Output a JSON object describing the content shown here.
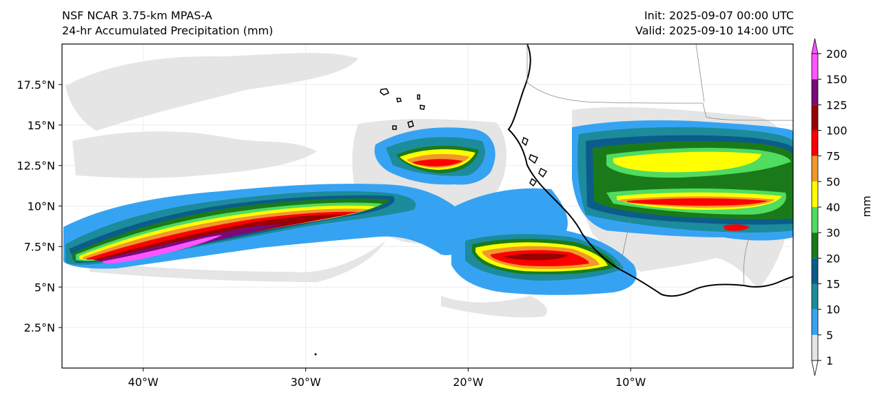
{
  "header": {
    "model": "NSF NCAR 3.75-km MPAS-A",
    "field": "24-hr Accumulated Precipitation (mm)",
    "init": "Init: 2025-09-07 00:00 UTC",
    "valid": "Valid: 2025-09-10 14:00 UTC"
  },
  "map": {
    "lon_range": [
      -45,
      0
    ],
    "lat_range": [
      0,
      20
    ],
    "lat_ticks": [
      {
        "value": 2.5,
        "label": "2.5°N"
      },
      {
        "value": 5,
        "label": "5°N"
      },
      {
        "value": 7.5,
        "label": "7.5°N"
      },
      {
        "value": 10,
        "label": "10°N"
      },
      {
        "value": 12.5,
        "label": "12.5°N"
      },
      {
        "value": 15,
        "label": "15°N"
      },
      {
        "value": 17.5,
        "label": "17.5°N"
      }
    ],
    "lon_ticks": [
      {
        "value": -40,
        "label": "40°W"
      },
      {
        "value": -30,
        "label": "30°W"
      },
      {
        "value": -20,
        "label": "20°W"
      },
      {
        "value": -10,
        "label": "10°W"
      }
    ]
  },
  "colorbar": {
    "label": "mm",
    "levels": [
      "1",
      "5",
      "10",
      "15",
      "20",
      "30",
      "40",
      "50",
      "75",
      "100",
      "125",
      "150",
      "200"
    ],
    "colors": [
      "#e5e5e5",
      "#36a3f2",
      "#1c8b9b",
      "#0b5c8a",
      "#1a7a1a",
      "#4fdc5f",
      "#ffff00",
      "#f0982d",
      "#ff0000",
      "#990000",
      "#7a0a7a",
      "#ff55ff"
    ]
  }
}
